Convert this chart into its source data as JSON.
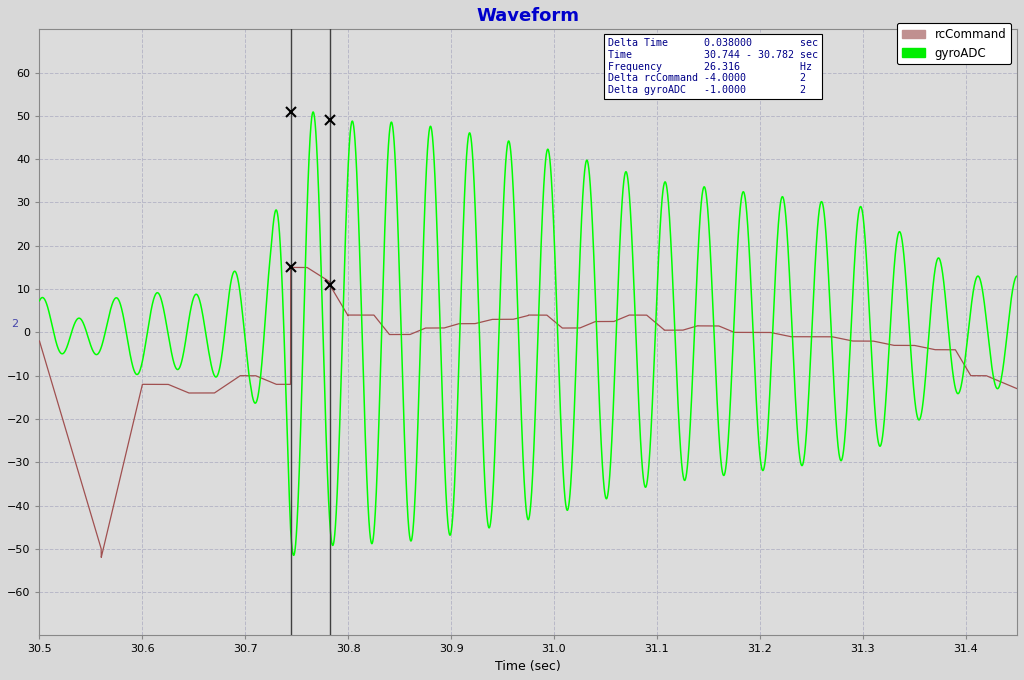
{
  "title": "Waveform",
  "title_color": "#0000CC",
  "xlabel": "Time (sec)",
  "xlim": [
    30.5,
    31.45
  ],
  "ylim": [
    -70,
    70
  ],
  "yticks": [
    -60,
    -50,
    -40,
    -30,
    -20,
    -10,
    0,
    10,
    20,
    30,
    40,
    50,
    60
  ],
  "xticks": [
    30.5,
    30.6,
    30.7,
    30.8,
    30.9,
    31.0,
    31.1,
    31.2,
    31.3,
    31.4
  ],
  "bg_color": "#d8d8d8",
  "plot_bg_color": "#dcdcdc",
  "grid_color": "#c0c0c0",
  "cursor1_x": 30.744,
  "cursor2_x": 30.782,
  "cursor_color": "#404040",
  "info_text_color": "#000088",
  "rcCommand_color": "#a05050",
  "gyroADC_color": "#00ff00",
  "legend_rcCommand_color": "#c09090",
  "legend_gyroADC_color": "#00ee00",
  "marker_gyro1_y": 51.0,
  "marker_gyro2_y": 49.0,
  "marker_rc1_y": 15.0,
  "marker_rc2_y": 11.0
}
